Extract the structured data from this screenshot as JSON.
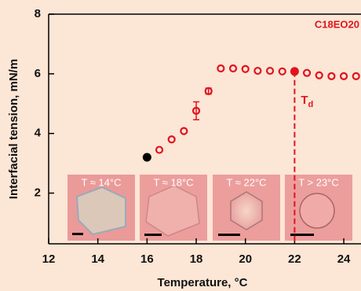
{
  "chart_data": {
    "type": "scatter",
    "title": "C18EO20",
    "x_label": "Temperature, °C",
    "y_label": "Interfacial tension, mN/m",
    "xlim": [
      12,
      24.7
    ],
    "ylim": [
      0.3,
      8
    ],
    "xticks": [
      12,
      14,
      16,
      18,
      20,
      22,
      24
    ],
    "yticks": [
      2,
      4,
      6,
      8
    ],
    "series": [
      {
        "color": "#000000",
        "marker": "filled",
        "x": [
          16
        ],
        "values": [
          3.2
        ]
      },
      {
        "color": "#e0141e",
        "marker": "open",
        "x": [
          16.5,
          17,
          17.5,
          18,
          18.5,
          19,
          19.5,
          20,
          20.5,
          21,
          21.5,
          22.5,
          23,
          23.5,
          24,
          24.5
        ],
        "values": [
          3.45,
          3.8,
          4.08,
          4.76,
          5.42,
          6.18,
          6.18,
          6.16,
          6.1,
          6.1,
          6.08,
          6.03,
          5.95,
          5.92,
          5.92,
          5.92
        ],
        "errors": [
          null,
          null,
          null,
          0.3,
          0.1,
          null,
          null,
          null,
          null,
          null,
          null,
          null,
          null,
          null,
          null,
          null
        ]
      },
      {
        "color": "#e0141e",
        "marker": "filled",
        "x": [
          22
        ],
        "values": [
          6.08
        ]
      }
    ],
    "threshold": {
      "x": 22,
      "label": "T",
      "subscript": "d",
      "color": "#e0141e"
    },
    "insets": [
      "T ≈ 14°C",
      "T ≈ 18°C",
      "T ≈ 22°C",
      "T > 23°C"
    ]
  }
}
